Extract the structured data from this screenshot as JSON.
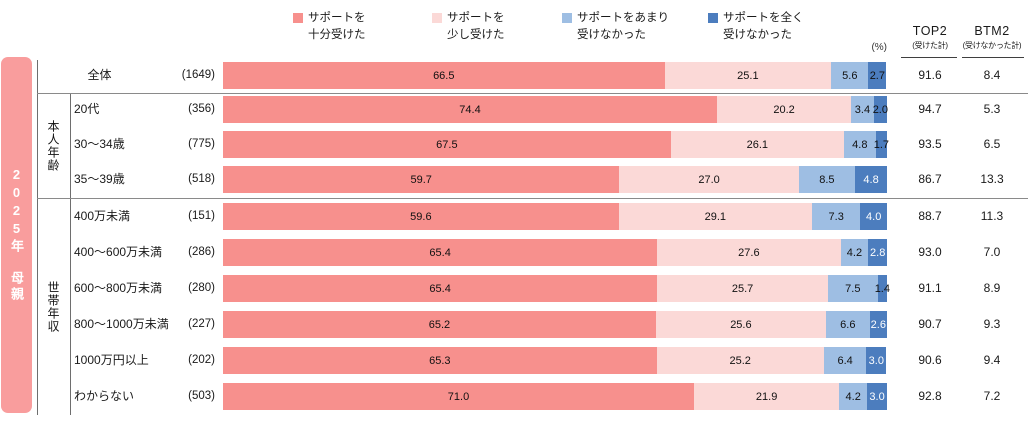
{
  "header": {
    "percent_label": "(%)",
    "top2_label": "TOP2",
    "top2_sub": "(受けた計)",
    "btm2_label": "BTM2",
    "btm2_sub": "(受けなかった計)"
  },
  "side_band": {
    "text": "2025年　母親",
    "color": "#F99D9D"
  },
  "legend": [
    {
      "line1": "サポートを",
      "line2": "十分受けた"
    },
    {
      "line1": "サポートを",
      "line2": "少し受けた"
    },
    {
      "line1": "サポートをあまり",
      "line2": "受けなかった"
    },
    {
      "line1": "サポートを全く",
      "line2": "受けなかった"
    }
  ],
  "chart_data": {
    "type": "bar",
    "orientation": "horizontal-stacked",
    "unit": "%",
    "xlim": [
      0,
      100
    ],
    "series_names": [
      "サポートを十分受けた",
      "サポートを少し受けた",
      "サポートをあまり受けなかった",
      "サポートを全く受けなかった"
    ],
    "colors": [
      "#F7908D",
      "#FBD9D7",
      "#9EBEE3",
      "#4C7DBE"
    ],
    "groups": [
      {
        "label": "本人年齢"
      },
      {
        "label": "世帯年収"
      }
    ],
    "summary_columns": [
      "TOP2 (受けた計)",
      "BTM2 (受けなかった計)"
    ],
    "rows": [
      {
        "group": "",
        "category": "全体",
        "n": 1649,
        "values": [
          66.5,
          25.1,
          5.6,
          2.7
        ],
        "top2": 91.6,
        "btm2": 8.4,
        "last_label_white": false
      },
      {
        "group": "本人年齢",
        "category": "20代",
        "n": 356,
        "values": [
          74.4,
          20.2,
          3.4,
          2.0
        ],
        "top2": 94.7,
        "btm2": 5.3,
        "last_label_white": false
      },
      {
        "group": "本人年齢",
        "category": "30〜34歳",
        "n": 775,
        "values": [
          67.5,
          26.1,
          4.8,
          1.7
        ],
        "top2": 93.5,
        "btm2": 6.5,
        "last_label_white": false
      },
      {
        "group": "本人年齢",
        "category": "35〜39歳",
        "n": 518,
        "values": [
          59.7,
          27.0,
          8.5,
          4.8
        ],
        "top2": 86.7,
        "btm2": 13.3,
        "last_label_white": true
      },
      {
        "group": "世帯年収",
        "category": "400万未満",
        "n": 151,
        "values": [
          59.6,
          29.1,
          7.3,
          4.0
        ],
        "top2": 88.7,
        "btm2": 11.3,
        "last_label_white": true
      },
      {
        "group": "世帯年収",
        "category": "400〜600万未満",
        "n": 286,
        "values": [
          65.4,
          27.6,
          4.2,
          2.8
        ],
        "top2": 93.0,
        "btm2": 7.0,
        "last_label_white": true
      },
      {
        "group": "世帯年収",
        "category": "600〜800万未満",
        "n": 280,
        "values": [
          65.4,
          25.7,
          7.5,
          1.4
        ],
        "top2": 91.1,
        "btm2": 8.9,
        "last_label_white": false
      },
      {
        "group": "世帯年収",
        "category": "800〜1000万未満",
        "n": 227,
        "values": [
          65.2,
          25.6,
          6.6,
          2.6
        ],
        "top2": 90.7,
        "btm2": 9.3,
        "last_label_white": true
      },
      {
        "group": "世帯年収",
        "category": "1000万円以上",
        "n": 202,
        "values": [
          65.3,
          25.2,
          6.4,
          3.0
        ],
        "top2": 90.6,
        "btm2": 9.4,
        "last_label_white": true
      },
      {
        "group": "世帯年収",
        "category": "わからない",
        "n": 503,
        "values": [
          71.0,
          21.9,
          4.2,
          3.0
        ],
        "top2": 92.8,
        "btm2": 7.2,
        "last_label_white": true
      }
    ]
  }
}
